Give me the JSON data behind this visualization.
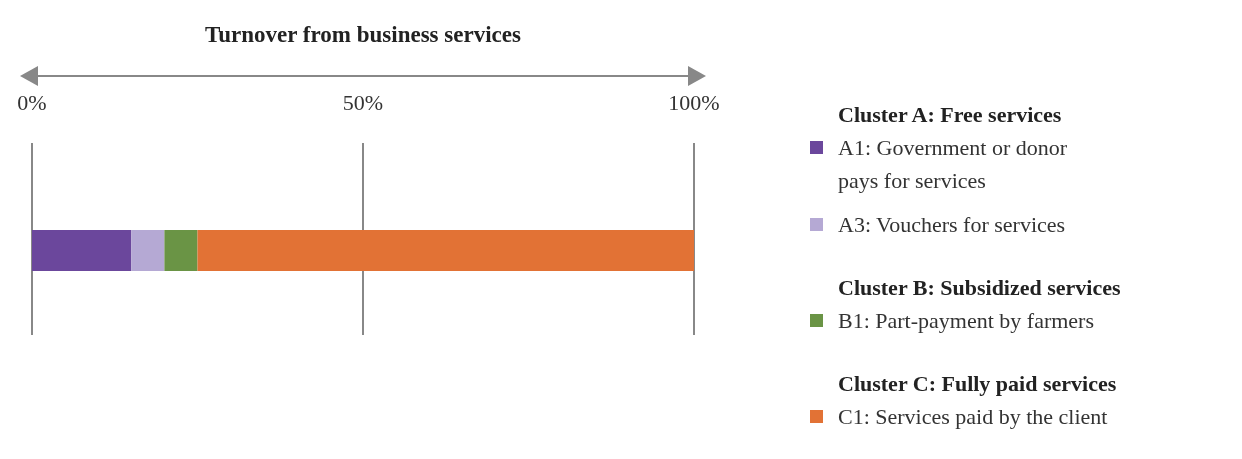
{
  "chart_data": {
    "type": "bar",
    "orientation": "horizontal",
    "stacked": true,
    "title": "Turnover from business services",
    "categories": [
      null
    ],
    "series": [
      {
        "name": "A1: Government or donor pays for services",
        "color": "#6b479c",
        "values": [
          15
        ]
      },
      {
        "name": "A3: Vouchers for services",
        "color": "#b5a9d4",
        "values": [
          5
        ]
      },
      {
        "name": "B1: Part-payment by farmers",
        "color": "#6a9445",
        "values": [
          5
        ]
      },
      {
        "name": "C1: Services paid by the client",
        "color": "#e27235",
        "values": [
          75
        ]
      }
    ],
    "xlim": [
      0,
      100
    ],
    "xticks": [
      {
        "value": 0,
        "label": "0%"
      },
      {
        "value": 50,
        "label": "50%"
      },
      {
        "value": 100,
        "label": "100%"
      }
    ],
    "grid": "x",
    "legend": "right",
    "annotations": [
      "Cluster A: Free services",
      "Cluster B: Subsidized services",
      "Cluster C: Fully paid services"
    ]
  }
}
